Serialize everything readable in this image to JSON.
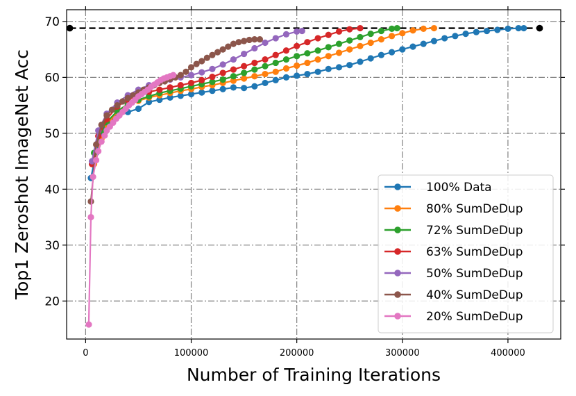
{
  "chart_data": {
    "type": "line",
    "title": "",
    "xlabel": "Number of Training Iterations",
    "ylabel": "Top1 Zeroshot ImageNet Acc",
    "xlim": [
      -18000,
      450000
    ],
    "ylim": [
      13.2,
      72.1
    ],
    "xticks": [
      0,
      100000,
      200000,
      300000,
      400000
    ],
    "xtick_labels": [
      "0",
      "100000",
      "200000",
      "300000",
      "400000"
    ],
    "yticks": [
      20,
      30,
      40,
      50,
      60,
      70
    ],
    "ytick_labels": [
      "20",
      "30",
      "40",
      "50",
      "60",
      "70"
    ],
    "grid": true,
    "legend_position": "lower-right",
    "reference_line": {
      "x": [
        -15000,
        430000
      ],
      "y": [
        68.8,
        68.8
      ],
      "color": "#000000",
      "style": "dashed"
    },
    "series": [
      {
        "name": "100% Data",
        "color": "#1f77b4",
        "x": [
          5000,
          10000,
          15000,
          20000,
          25000,
          30000,
          40000,
          50000,
          60000,
          70000,
          80000,
          90000,
          100000,
          110000,
          120000,
          130000,
          140000,
          150000,
          160000,
          170000,
          180000,
          190000,
          200000,
          210000,
          220000,
          230000,
          240000,
          250000,
          260000,
          270000,
          280000,
          290000,
          300000,
          310000,
          320000,
          330000,
          340000,
          350000,
          360000,
          370000,
          380000,
          390000,
          400000,
          410000,
          415000
        ],
        "y": [
          42.0,
          46.5,
          49.5,
          51.0,
          52.2,
          53.0,
          53.8,
          54.4,
          55.6,
          56.0,
          56.4,
          56.7,
          57.0,
          57.3,
          57.6,
          57.9,
          58.2,
          58.1,
          58.4,
          59.0,
          59.5,
          60.0,
          60.3,
          60.6,
          61.0,
          61.5,
          61.8,
          62.2,
          62.8,
          63.4,
          64.0,
          64.5,
          65.0,
          65.5,
          66.0,
          66.5,
          67.0,
          67.4,
          67.8,
          68.1,
          68.3,
          68.5,
          68.7,
          68.8,
          68.8
        ]
      },
      {
        "name": "80% SumDeDup",
        "color": "#ff7f0e",
        "x": [
          8000,
          15000,
          20000,
          30000,
          40000,
          50000,
          60000,
          70000,
          80000,
          90000,
          100000,
          110000,
          120000,
          130000,
          140000,
          150000,
          160000,
          170000,
          180000,
          190000,
          200000,
          210000,
          220000,
          230000,
          240000,
          250000,
          260000,
          270000,
          280000,
          290000,
          300000,
          310000,
          320000,
          330000
        ],
        "y": [
          44.5,
          49.0,
          51.5,
          53.8,
          55.0,
          55.8,
          56.4,
          56.8,
          57.2,
          57.6,
          57.9,
          58.3,
          58.6,
          59.0,
          59.4,
          59.8,
          60.2,
          60.6,
          61.0,
          61.6,
          62.1,
          62.6,
          63.2,
          63.8,
          64.4,
          65.0,
          65.6,
          66.2,
          66.8,
          67.4,
          67.9,
          68.4,
          68.7,
          68.8
        ]
      },
      {
        "name": "72% SumDeDup",
        "color": "#2ca02c",
        "x": [
          8000,
          15000,
          20000,
          30000,
          40000,
          50000,
          60000,
          70000,
          80000,
          90000,
          100000,
          110000,
          120000,
          130000,
          140000,
          150000,
          160000,
          170000,
          180000,
          190000,
          200000,
          210000,
          220000,
          230000,
          240000,
          250000,
          260000,
          270000,
          280000,
          290000,
          295000
        ],
        "y": [
          46.5,
          50.5,
          52.0,
          54.0,
          55.2,
          56.0,
          56.6,
          57.2,
          57.6,
          58.0,
          58.4,
          58.8,
          59.2,
          59.6,
          60.2,
          60.8,
          61.4,
          62.0,
          62.6,
          63.2,
          63.8,
          64.3,
          64.8,
          65.4,
          66.0,
          66.6,
          67.2,
          67.8,
          68.3,
          68.7,
          68.8
        ]
      },
      {
        "name": "63% SumDeDup",
        "color": "#d62728",
        "x": [
          6000,
          12000,
          20000,
          30000,
          40000,
          50000,
          60000,
          70000,
          80000,
          90000,
          100000,
          110000,
          120000,
          130000,
          140000,
          150000,
          160000,
          170000,
          180000,
          190000,
          200000,
          210000,
          220000,
          230000,
          240000,
          250000,
          260000
        ],
        "y": [
          44.5,
          49.5,
          52.5,
          54.8,
          56.0,
          56.8,
          57.4,
          57.8,
          58.2,
          58.6,
          59.0,
          59.5,
          60.1,
          60.8,
          61.4,
          62.0,
          62.6,
          63.2,
          64.0,
          64.8,
          65.6,
          66.3,
          67.0,
          67.6,
          68.2,
          68.6,
          68.8
        ]
      },
      {
        "name": "50% SumDeDup",
        "color": "#9467bd",
        "x": [
          6000,
          12000,
          20000,
          30000,
          40000,
          50000,
          60000,
          70000,
          80000,
          90000,
          100000,
          110000,
          120000,
          130000,
          140000,
          150000,
          160000,
          170000,
          180000,
          190000,
          200000,
          205000
        ],
        "y": [
          45.0,
          50.5,
          53.5,
          55.5,
          56.8,
          57.8,
          58.6,
          59.2,
          59.6,
          60.0,
          60.4,
          60.9,
          61.5,
          62.3,
          63.2,
          64.2,
          65.2,
          66.2,
          67.0,
          67.7,
          68.2,
          68.3
        ]
      },
      {
        "name": "40% SumDeDup",
        "color": "#8c564b",
        "x": [
          5000,
          10000,
          15000,
          20000,
          25000,
          30000,
          35000,
          40000,
          45000,
          50000,
          55000,
          60000,
          65000,
          70000,
          75000,
          80000,
          85000,
          90000,
          95000,
          100000,
          105000,
          110000,
          115000,
          120000,
          125000,
          130000,
          135000,
          140000,
          145000,
          150000,
          155000,
          160000,
          165000
        ],
        "y": [
          37.8,
          48.0,
          51.5,
          53.2,
          54.2,
          55.0,
          55.7,
          56.3,
          56.8,
          57.3,
          57.8,
          58.2,
          58.6,
          59.0,
          59.3,
          59.7,
          60.0,
          60.4,
          61.0,
          61.8,
          62.4,
          62.9,
          63.5,
          64.0,
          64.5,
          65.0,
          65.5,
          66.0,
          66.3,
          66.5,
          66.7,
          66.8,
          66.8
        ]
      },
      {
        "name": "20% SumDeDup",
        "color": "#e377c2",
        "x": [
          3000,
          5000,
          7000,
          10000,
          12000,
          15000,
          18000,
          20000,
          23000,
          26000,
          29000,
          32000,
          35000,
          38000,
          41000,
          44000,
          47000,
          50000,
          53000,
          56000,
          59000,
          62000,
          65000,
          68000,
          71000,
          74000,
          77000,
          80000,
          83000
        ],
        "y": [
          15.8,
          35.0,
          42.2,
          45.2,
          46.8,
          48.5,
          49.6,
          50.5,
          51.2,
          51.9,
          52.6,
          53.2,
          53.8,
          54.4,
          55.0,
          55.5,
          56.0,
          56.6,
          57.0,
          57.4,
          57.8,
          58.3,
          58.7,
          59.1,
          59.5,
          59.8,
          60.0,
          60.2,
          60.4
        ]
      }
    ]
  }
}
